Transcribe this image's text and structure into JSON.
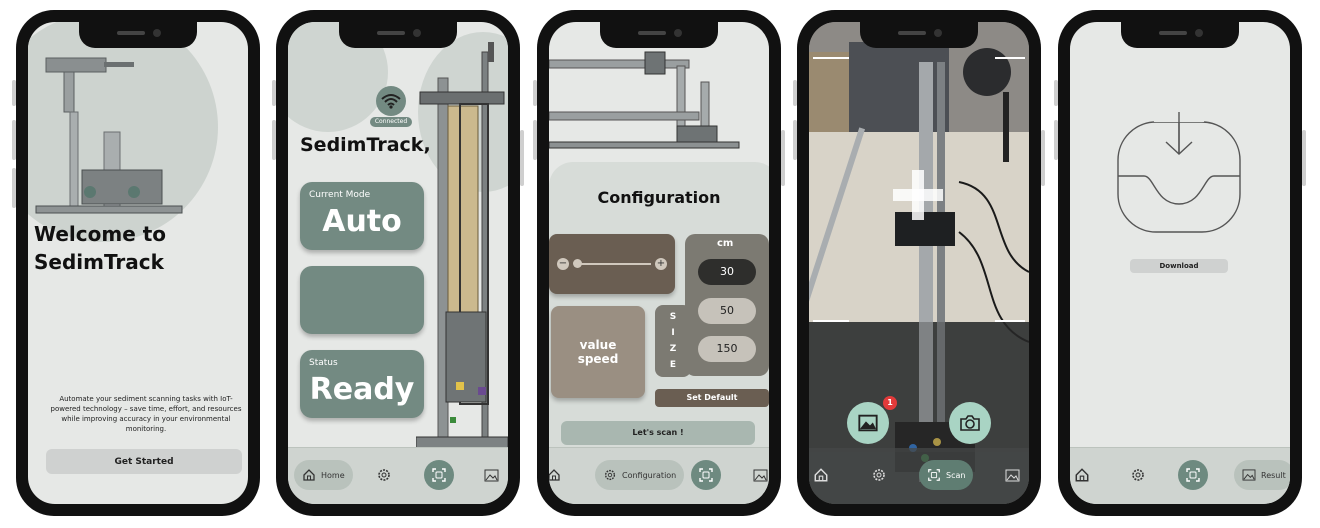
{
  "screen1": {
    "title_line1": "Welcome to",
    "title_line2": "SedimTrack",
    "description": "Automate your sediment scanning tasks with IoT-powered technology – save time, effort, and resources while improving accuracy in your environmental monitoring.",
    "get_started_label": "Get Started"
  },
  "screen2": {
    "wifi_label": "Connected",
    "greeting": "SedimTrack,",
    "mode_caption": "Current Mode",
    "mode_value": "Auto",
    "status_caption": "Status",
    "status_value": "Ready",
    "nav": {
      "home_label": "Home"
    }
  },
  "screen3": {
    "title": "Configuration",
    "value_speed_line1": "value",
    "value_speed_line2": "speed",
    "unit_label": "cm",
    "size_letters": [
      "S",
      "I",
      "Z",
      "E"
    ],
    "size_options": [
      "30",
      "50",
      "150"
    ],
    "selected_size": "30",
    "set_default_label": "Set Default",
    "scan_label": "Let's scan !",
    "nav": {
      "configuration_label": "Configuration"
    }
  },
  "screen4": {
    "gallery_badge": "1",
    "nav": {
      "scan_label": "Scan"
    }
  },
  "screen5": {
    "download_label": "Download",
    "nav": {
      "result_label": "Result"
    }
  },
  "colors": {
    "accent": "#738a82",
    "screen_bg": "#e6e8e6",
    "brown": "#6a5e52",
    "tan": "#9a8f82"
  },
  "icons": [
    "home-icon",
    "gear-icon",
    "scan-icon",
    "gallery-icon",
    "wifi-icon",
    "camera-icon",
    "download-icon",
    "minus-icon",
    "plus-icon"
  ]
}
